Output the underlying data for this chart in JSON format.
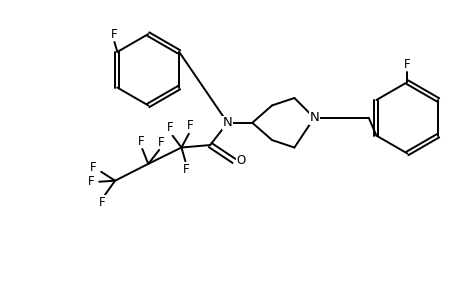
{
  "bg_color": "#ffffff",
  "line_color": "#000000",
  "line_width": 1.4,
  "font_size": 8.5,
  "fig_width": 4.6,
  "fig_height": 3.0,
  "dpi": 100,
  "xlim": [
    0,
    9.2
  ],
  "ylim": [
    0,
    6.0
  ]
}
